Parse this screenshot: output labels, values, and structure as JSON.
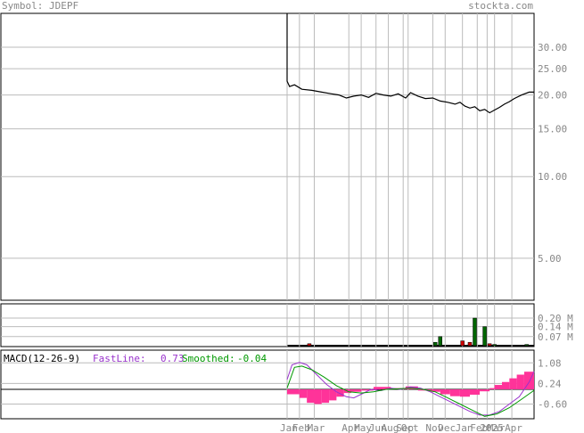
{
  "header": {
    "symbol_label": "Symbol: JDEPF",
    "brand": "stockta.com"
  },
  "colors": {
    "price_line": "#000000",
    "grid": "#bbbbbb",
    "label": "#888888",
    "vol_up": "#006600",
    "vol_down": "#cc0000",
    "hist": "#ff3399",
    "fast": "#9933cc",
    "smooth": "#009900",
    "macd_text": "#000000"
  },
  "chart_data": [
    {
      "type": "line",
      "panel": "price",
      "y_scale": "log",
      "ylim": [
        3.5,
        40
      ],
      "y_ticks": [
        "30.00",
        "25.00",
        "20.00",
        "15.00",
        "10.00",
        "5.00"
      ],
      "y_tick_values": [
        30,
        25,
        20,
        15,
        10,
        5
      ],
      "x_labels": [
        "Jan",
        "Feb",
        "Mar",
        "Apr",
        "May",
        "Jun",
        "Aug",
        "Sep",
        "Oct",
        "Nov",
        "Dec",
        "Jan",
        "Feb",
        "2025",
        "Mar",
        "Apr"
      ],
      "x_label_positions": [
        0.0,
        0.05,
        0.11,
        0.25,
        0.3,
        0.36,
        0.41,
        0.47,
        0.49,
        0.59,
        0.64,
        0.71,
        0.77,
        0.81,
        0.84,
        0.91
      ],
      "series": [
        {
          "x": [
            0.0,
            0.01,
            0.03,
            0.06,
            0.1,
            0.14,
            0.18,
            0.21,
            0.24,
            0.27,
            0.3,
            0.33,
            0.36,
            0.39,
            0.42,
            0.45,
            0.48,
            0.5,
            0.53,
            0.56,
            0.59,
            0.62,
            0.65,
            0.68,
            0.7,
            0.72,
            0.74,
            0.76,
            0.78,
            0.8,
            0.82,
            0.84,
            0.86,
            0.88,
            0.9,
            0.92,
            0.95,
            0.98,
            1.0
          ],
          "values": [
            22.5,
            21.5,
            21.8,
            21.0,
            20.8,
            20.5,
            20.2,
            20.0,
            19.5,
            19.8,
            20.0,
            19.6,
            20.3,
            20.0,
            19.8,
            20.2,
            19.5,
            20.4,
            19.8,
            19.4,
            19.5,
            19.0,
            18.8,
            18.5,
            18.8,
            18.2,
            17.9,
            18.1,
            17.5,
            17.7,
            17.2,
            17.6,
            18.0,
            18.5,
            18.9,
            19.4,
            20.0,
            20.5,
            20.5
          ],
          "entry": {
            "from": 1000,
            "to": 22.5
          }
        }
      ]
    },
    {
      "type": "bar",
      "panel": "volume",
      "ylim": [
        0,
        0.3
      ],
      "y_ticks": [
        "0.20 M",
        "0.14 M",
        "0.07 M"
      ],
      "y_tick_values": [
        0.2,
        0.14,
        0.07
      ],
      "bars": [
        {
          "x": 0.09,
          "value": 0.02,
          "dir": "down"
        },
        {
          "x": 0.6,
          "value": 0.03,
          "dir": "up"
        },
        {
          "x": 0.62,
          "value": 0.07,
          "dir": "up"
        },
        {
          "x": 0.71,
          "value": 0.04,
          "dir": "down"
        },
        {
          "x": 0.74,
          "value": 0.03,
          "dir": "down"
        },
        {
          "x": 0.76,
          "value": 0.2,
          "dir": "up"
        },
        {
          "x": 0.8,
          "value": 0.14,
          "dir": "up"
        },
        {
          "x": 0.82,
          "value": 0.02,
          "dir": "down"
        },
        {
          "x": 0.84,
          "value": 0.015,
          "dir": "up"
        },
        {
          "x": 0.97,
          "value": 0.015,
          "dir": "up"
        }
      ]
    },
    {
      "type": "line",
      "panel": "macd",
      "title": "MACD(12-26-9)",
      "fast_label": "FastLine:",
      "fast_value": "0.73",
      "smooth_label": "Smoothed:",
      "smooth_value": "-0.04",
      "ylim": [
        -1.2,
        1.6
      ],
      "zero_level": 0.0,
      "y_ticks": [
        "1.08",
        "0.24",
        "-0.60"
      ],
      "y_tick_values": [
        1.08,
        0.24,
        -0.6
      ],
      "fast": {
        "x": [
          0.0,
          0.02,
          0.05,
          0.08,
          0.12,
          0.16,
          0.2,
          0.24,
          0.27,
          0.3,
          0.34,
          0.38,
          0.42,
          0.46,
          0.5,
          0.54,
          0.58,
          0.62,
          0.66,
          0.7,
          0.74,
          0.78,
          0.82,
          0.86,
          0.9,
          0.94,
          0.98,
          1.0
        ],
        "values": [
          0.4,
          1.0,
          1.1,
          1.0,
          0.6,
          0.2,
          -0.1,
          -0.3,
          -0.35,
          -0.2,
          0.0,
          -0.05,
          0.05,
          0.0,
          0.1,
          0.05,
          -0.1,
          -0.3,
          -0.5,
          -0.7,
          -0.9,
          -1.05,
          -1.05,
          -0.9,
          -0.6,
          -0.3,
          0.3,
          0.73
        ]
      },
      "smooth": {
        "x": [
          0.0,
          0.03,
          0.06,
          0.1,
          0.15,
          0.2,
          0.25,
          0.3,
          0.35,
          0.4,
          0.45,
          0.5,
          0.55,
          0.6,
          0.65,
          0.7,
          0.75,
          0.8,
          0.85,
          0.9,
          0.95,
          1.0
        ],
        "values": [
          0.05,
          0.9,
          0.95,
          0.8,
          0.5,
          0.15,
          -0.1,
          -0.15,
          -0.1,
          0.0,
          0.02,
          0.05,
          0.0,
          -0.1,
          -0.35,
          -0.6,
          -0.85,
          -1.1,
          -1.0,
          -0.75,
          -0.4,
          -0.04
        ]
      },
      "histogram": [
        {
          "x0": 0.0,
          "x1": 0.05,
          "value": -0.2
        },
        {
          "x0": 0.05,
          "x1": 0.08,
          "value": -0.35
        },
        {
          "x0": 0.08,
          "x1": 0.11,
          "value": -0.55
        },
        {
          "x0": 0.11,
          "x1": 0.14,
          "value": -0.6
        },
        {
          "x0": 0.14,
          "x1": 0.17,
          "value": -0.55
        },
        {
          "x0": 0.17,
          "x1": 0.2,
          "value": -0.45
        },
        {
          "x0": 0.2,
          "x1": 0.23,
          "value": -0.3
        },
        {
          "x0": 0.23,
          "x1": 0.26,
          "value": -0.15
        },
        {
          "x0": 0.26,
          "x1": 0.3,
          "value": -0.1
        },
        {
          "x0": 0.3,
          "x1": 0.35,
          "value": -0.05
        },
        {
          "x0": 0.35,
          "x1": 0.42,
          "value": 0.1
        },
        {
          "x0": 0.42,
          "x1": 0.48,
          "value": 0.05
        },
        {
          "x0": 0.48,
          "x1": 0.53,
          "value": 0.12
        },
        {
          "x0": 0.53,
          "x1": 0.58,
          "value": -0.05
        },
        {
          "x0": 0.58,
          "x1": 0.62,
          "value": -0.1
        },
        {
          "x0": 0.62,
          "x1": 0.66,
          "value": -0.2
        },
        {
          "x0": 0.66,
          "x1": 0.7,
          "value": -0.28
        },
        {
          "x0": 0.7,
          "x1": 0.74,
          "value": -0.3
        },
        {
          "x0": 0.74,
          "x1": 0.78,
          "value": -0.22
        },
        {
          "x0": 0.78,
          "x1": 0.82,
          "value": -0.08
        },
        {
          "x0": 0.82,
          "x1": 0.84,
          "value": 0.05
        },
        {
          "x0": 0.84,
          "x1": 0.87,
          "value": 0.18
        },
        {
          "x0": 0.87,
          "x1": 0.9,
          "value": 0.3
        },
        {
          "x0": 0.9,
          "x1": 0.93,
          "value": 0.45
        },
        {
          "x0": 0.93,
          "x1": 0.96,
          "value": 0.6
        },
        {
          "x0": 0.96,
          "x1": 1.0,
          "value": 0.72
        }
      ]
    }
  ]
}
